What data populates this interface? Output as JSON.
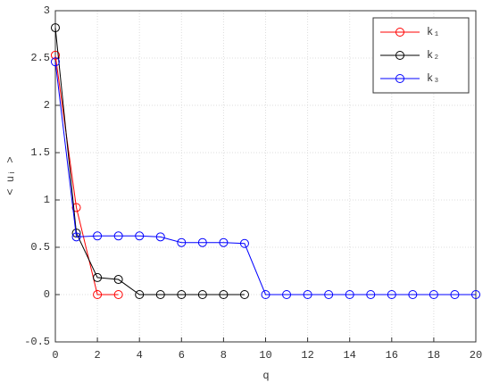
{
  "chart_data": {
    "type": "line",
    "x_label": "q",
    "y_label": "< uᵢ >",
    "x": [
      0,
      1,
      2,
      3,
      4,
      5,
      6,
      7,
      8,
      9,
      10,
      11,
      12,
      13,
      14,
      15,
      16,
      17,
      18,
      19,
      20
    ],
    "series": [
      {
        "name": "k₁",
        "color": "#ff0000",
        "values": [
          2.53,
          0.92,
          0,
          0,
          null,
          null,
          null,
          null,
          null,
          null,
          null,
          null,
          null,
          null,
          null,
          null,
          null,
          null,
          null,
          null,
          null
        ]
      },
      {
        "name": "k₂",
        "color": "#000000",
        "values": [
          2.82,
          0.65,
          0.18,
          0.16,
          0,
          0,
          0,
          0,
          0,
          0,
          null,
          null,
          null,
          null,
          null,
          null,
          null,
          null,
          null,
          null,
          null
        ]
      },
      {
        "name": "k₃",
        "color": "#0000ff",
        "values": [
          2.46,
          0.61,
          0.62,
          0.62,
          0.62,
          0.61,
          0.55,
          0.55,
          0.55,
          0.54,
          0,
          0,
          0,
          0,
          0,
          0,
          0,
          0,
          0,
          0,
          0
        ]
      }
    ],
    "xlim": [
      0,
      20
    ],
    "xticks": [
      0,
      2,
      4,
      6,
      8,
      10,
      12,
      14,
      16,
      18,
      20
    ],
    "ylim": [
      -0.5,
      3
    ],
    "yticks": [
      -0.5,
      0,
      0.5,
      1,
      1.5,
      2,
      2.5,
      3
    ],
    "grid": true,
    "legend": "top-right"
  }
}
